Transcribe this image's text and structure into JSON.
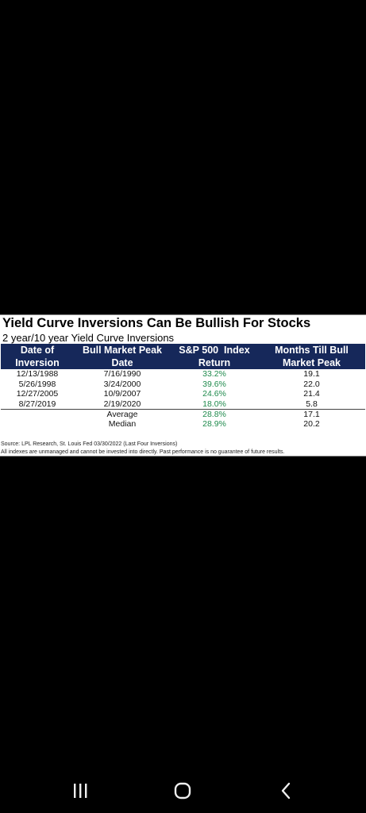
{
  "title": "Yield Curve Inversions Can Be Bullish For Stocks",
  "subtitle": "2 year/10 year Yield Curve Inversions",
  "table": {
    "headers": [
      [
        "Date of",
        "Inversion"
      ],
      [
        "Bull Market Peak",
        "Date"
      ],
      [
        "S&P 500  Index",
        "Return"
      ],
      [
        "Months Till Bull",
        "Market Peak"
      ]
    ],
    "rows": [
      [
        "12/13/1988",
        "7/16/1990",
        "33.2%",
        "19.1"
      ],
      [
        "5/26/1998",
        "3/24/2000",
        "39.6%",
        "22.0"
      ],
      [
        "12/27/2005",
        "10/9/2007",
        "24.6%",
        "21.4"
      ],
      [
        "8/27/2019",
        "2/19/2020",
        "18.0%",
        "5.8"
      ]
    ],
    "summary": [
      [
        "",
        "Average",
        "28.8%",
        "17.1"
      ],
      [
        "",
        "Median",
        "28.9%",
        "20.2"
      ]
    ]
  },
  "source": "Source: LPL Research, St. Louis Fed 03/30/2022 (Last Four Inversions)",
  "disclaimer": "All indexes are unmanaged and cannot be invested into directly. Past performance is no guarantee of future results.",
  "colors": {
    "header_bg": "#16285a",
    "positive_return": "#1f8a4c"
  },
  "navbar": {
    "recents": "recents-icon",
    "home": "home-icon",
    "back": "back-icon"
  }
}
